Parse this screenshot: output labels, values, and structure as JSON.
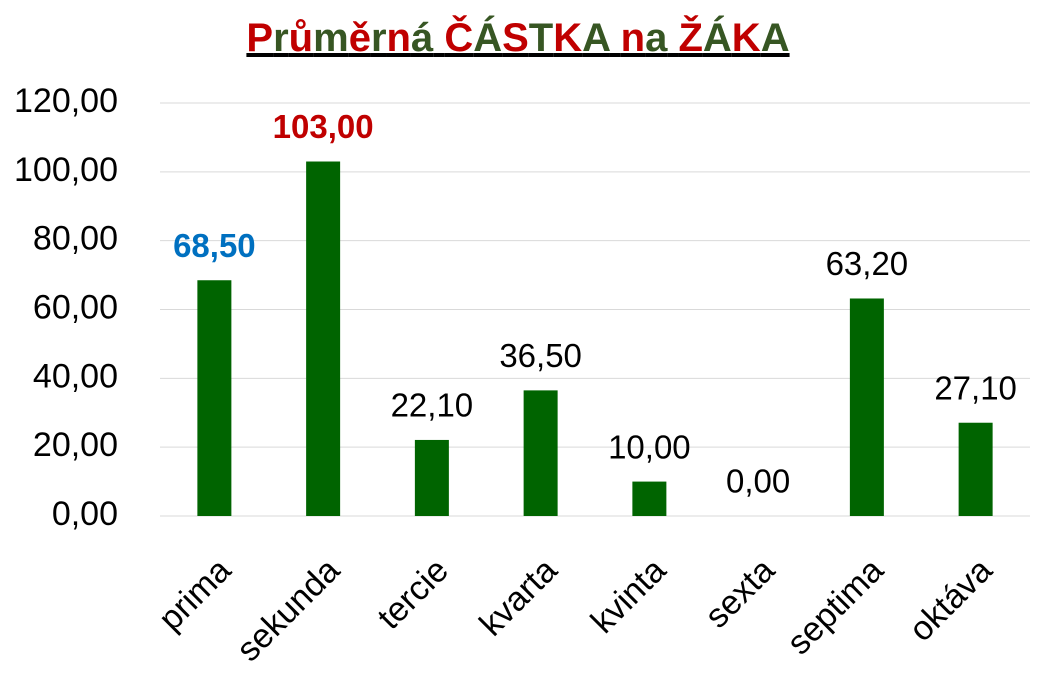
{
  "chart_data": {
    "type": "bar",
    "title": "Průměrná ČÁSTKA na  ŽÁKA",
    "title_colors": [
      "#c00000",
      "#375623"
    ],
    "categories": [
      "prima",
      "sekunda",
      "tercie",
      "kvarta",
      "kvinta",
      "sexta",
      "septima",
      "oktáva"
    ],
    "values": [
      68.5,
      103,
      22.1,
      36.5,
      10,
      0,
      63.2,
      27.1
    ],
    "value_labels": [
      "68,50",
      "103,00",
      "22,10",
      "36,50",
      "10,00",
      "0,00",
      "63,20",
      "27,10"
    ],
    "value_label_colors": [
      "#0070c0",
      "#c00000",
      "#000000",
      "#000000",
      "#000000",
      "#000000",
      "#000000",
      "#000000"
    ],
    "value_label_weights": [
      "bold",
      "bold",
      "normal",
      "normal",
      "normal",
      "normal",
      "normal",
      "normal"
    ],
    "color": "#006400",
    "ylim": [
      0,
      120
    ],
    "yticks": [
      {
        "value": 0,
        "label": "0,00"
      },
      {
        "value": 20,
        "label": "20,00"
      },
      {
        "value": 40,
        "label": "40,00"
      },
      {
        "value": 60,
        "label": "60,00"
      },
      {
        "value": 80,
        "label": "80,00"
      },
      {
        "value": 100,
        "label": "100,00"
      },
      {
        "value": 120,
        "label": "120,00"
      }
    ],
    "grid": true
  }
}
